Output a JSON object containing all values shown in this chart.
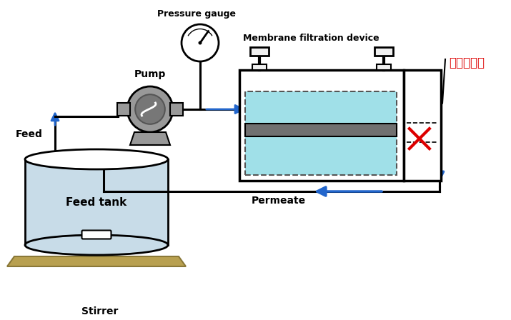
{
  "bg_color": "#ffffff",
  "labels": {
    "pump": "Pump",
    "pressure_gauge": "Pressure gauge",
    "membrane_device": "Membrane filtration device",
    "ion_exchange": "이온교환막",
    "feed": "Feed",
    "permeate": "Permeate",
    "feed_tank": "Feed tank",
    "stirrer": "Stirrer"
  },
  "colors": {
    "pump_gray": "#999999",
    "pump_dark": "#777777",
    "pump_light": "#bbbbbb",
    "water_cyan": "#a0e0e8",
    "water_light": "#c5e8f0",
    "membrane_gray": "#707070",
    "pipe_black": "#111111",
    "arrow_blue": "#2266cc",
    "arrow_bold_blue": "#1144aa",
    "tank_water": "#c8dce8",
    "base_tan": "#b8a050",
    "base_dark": "#8a7838",
    "red": "#dd0000",
    "dashed_gray": "#555555",
    "cap_fill": "#f0f0f0"
  }
}
